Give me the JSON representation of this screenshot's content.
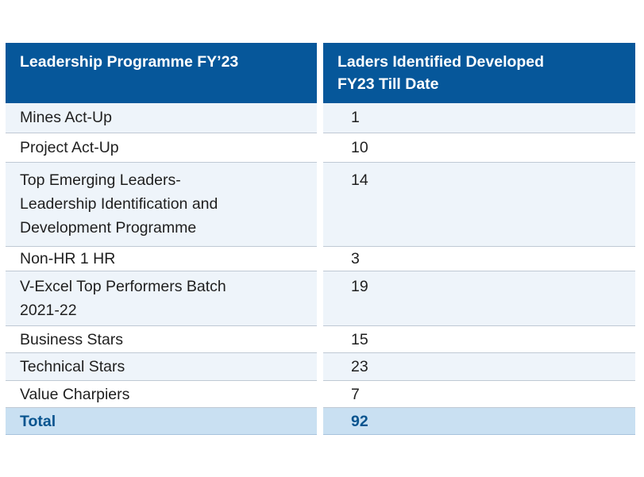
{
  "header": {
    "col1": "Leadership Programme FY’23",
    "col2_line1": "Laders Identified Developed",
    "col2_line2": "FY23 Till Date"
  },
  "rows": [
    {
      "lines": [
        "Mines Act-Up"
      ],
      "value": "1"
    },
    {
      "lines": [
        "Project Act-Up"
      ],
      "value": "10"
    },
    {
      "lines": [
        "Top Emerging Leaders-",
        "Leadership Identification and",
        "Development Programme"
      ],
      "value": "14"
    },
    {
      "lines": [
        "Non-HR 1 HR"
      ],
      "value": "3"
    },
    {
      "lines": [
        "V-Excel Top Performers Batch",
        "2021-22"
      ],
      "value": "19"
    },
    {
      "lines": [
        "Business Stars"
      ],
      "value": "15"
    },
    {
      "lines": [
        "Technical Stars"
      ],
      "value": "23"
    },
    {
      "lines": [
        "Value Charpiers"
      ],
      "value": "7"
    }
  ],
  "total": {
    "label": "Total",
    "value": "92"
  }
}
